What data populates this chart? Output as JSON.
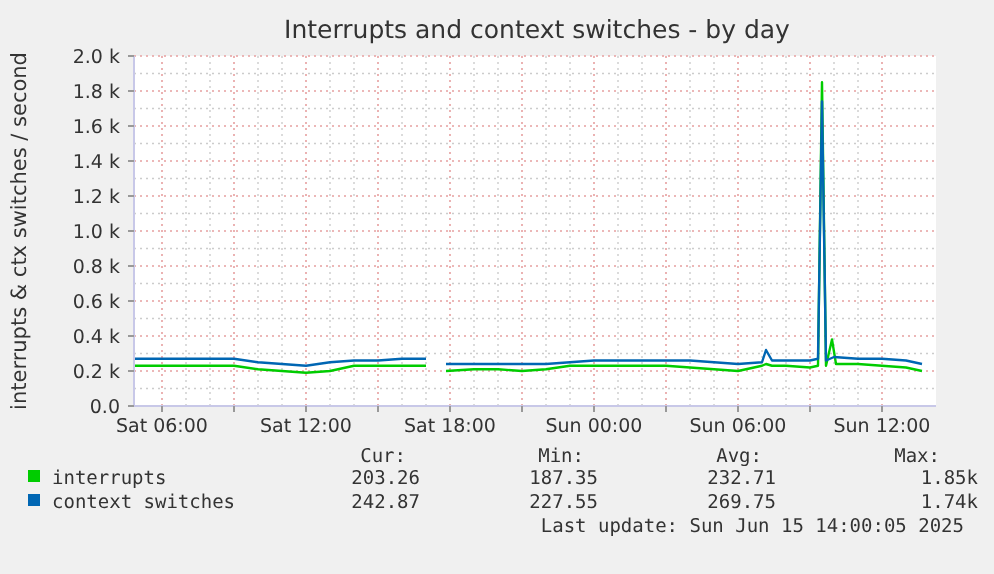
{
  "chart_data": {
    "type": "line",
    "title": "Interrupts and context switches - by day",
    "ylabel": "interrupts & ctx switches / second",
    "xlim": [
      "2025-06-14T04:50",
      "2025-06-15T14:15"
    ],
    "ylim": [
      0,
      2000
    ],
    "xticks": [
      {
        "value": "2025-06-14T06:00",
        "label": "Sat 06:00"
      },
      {
        "value": "2025-06-14T09:00",
        "label": null
      },
      {
        "value": "2025-06-14T12:00",
        "label": "Sat 12:00"
      },
      {
        "value": "2025-06-14T15:00",
        "label": null
      },
      {
        "value": "2025-06-14T18:00",
        "label": "Sat 18:00"
      },
      {
        "value": "2025-06-14T21:00",
        "label": null
      },
      {
        "value": "2025-06-15T00:00",
        "label": "Sun 00:00"
      },
      {
        "value": "2025-06-15T03:00",
        "label": null
      },
      {
        "value": "2025-06-15T06:00",
        "label": "Sun 06:00"
      },
      {
        "value": "2025-06-15T09:00",
        "label": null
      },
      {
        "value": "2025-06-15T12:00",
        "label": "Sun 12:00"
      }
    ],
    "yticks": [
      {
        "value": 0,
        "label": "0.0"
      },
      {
        "value": 200,
        "label": "0.2 k"
      },
      {
        "value": 400,
        "label": "0.4 k"
      },
      {
        "value": 600,
        "label": "0.6 k"
      },
      {
        "value": 800,
        "label": "0.8 k"
      },
      {
        "value": 1000,
        "label": "1.0 k"
      },
      {
        "value": 1200,
        "label": "1.2 k"
      },
      {
        "value": 1400,
        "label": "1.4 k"
      },
      {
        "value": 1600,
        "label": "1.6 k"
      },
      {
        "value": 1800,
        "label": "1.8 k"
      },
      {
        "value": 2000,
        "label": "2.0 k"
      }
    ],
    "grid": true,
    "legend": "bottom",
    "marker": "none",
    "line_style": "solid",
    "series": [
      {
        "name": "interrupts",
        "color": "#00cc00",
        "x": [
          "2025-06-14T04:50",
          "2025-06-14T06:00",
          "2025-06-14T07:00",
          "2025-06-14T08:00",
          "2025-06-14T09:00",
          "2025-06-14T10:00",
          "2025-06-14T11:00",
          "2025-06-14T12:00",
          "2025-06-14T13:00",
          "2025-06-14T14:00",
          "2025-06-14T15:00",
          "2025-06-14T16:00",
          "2025-06-14T17:00",
          "2025-06-14T17:20",
          "2025-06-14T17:30",
          "2025-06-14T17:50",
          "2025-06-14T19:00",
          "2025-06-14T20:00",
          "2025-06-14T21:00",
          "2025-06-14T22:00",
          "2025-06-14T23:00",
          "2025-06-15T00:00",
          "2025-06-15T01:00",
          "2025-06-15T02:00",
          "2025-06-15T03:00",
          "2025-06-15T04:00",
          "2025-06-15T05:00",
          "2025-06-15T06:00",
          "2025-06-15T07:00",
          "2025-06-15T07:10",
          "2025-06-15T07:25",
          "2025-06-15T08:00",
          "2025-06-15T09:00",
          "2025-06-15T09:20",
          "2025-06-15T09:30",
          "2025-06-15T09:40",
          "2025-06-15T09:55",
          "2025-06-15T10:05",
          "2025-06-15T11:00",
          "2025-06-15T12:00",
          "2025-06-15T13:00",
          "2025-06-15T13:40"
        ],
        "values": [
          230,
          230,
          230,
          230,
          230,
          210,
          200,
          190,
          200,
          230,
          230,
          230,
          230,
          null,
          null,
          200,
          210,
          210,
          200,
          210,
          230,
          230,
          230,
          230,
          230,
          220,
          210,
          200,
          230,
          240,
          230,
          230,
          220,
          230,
          1850,
          230,
          380,
          240,
          240,
          230,
          220,
          200
        ]
      },
      {
        "name": "context switches",
        "color": "#0066b3",
        "x": [
          "2025-06-14T04:50",
          "2025-06-14T06:00",
          "2025-06-14T07:00",
          "2025-06-14T08:00",
          "2025-06-14T09:00",
          "2025-06-14T10:00",
          "2025-06-14T11:00",
          "2025-06-14T12:00",
          "2025-06-14T13:00",
          "2025-06-14T14:00",
          "2025-06-14T15:00",
          "2025-06-14T16:00",
          "2025-06-14T17:00",
          "2025-06-14T17:20",
          "2025-06-14T17:30",
          "2025-06-14T17:50",
          "2025-06-14T19:00",
          "2025-06-14T20:00",
          "2025-06-14T21:00",
          "2025-06-14T22:00",
          "2025-06-14T23:00",
          "2025-06-15T00:00",
          "2025-06-15T01:00",
          "2025-06-15T02:00",
          "2025-06-15T03:00",
          "2025-06-15T04:00",
          "2025-06-15T05:00",
          "2025-06-15T06:00",
          "2025-06-15T07:00",
          "2025-06-15T07:10",
          "2025-06-15T07:25",
          "2025-06-15T08:00",
          "2025-06-15T09:00",
          "2025-06-15T09:20",
          "2025-06-15T09:30",
          "2025-06-15T09:40",
          "2025-06-15T10:00",
          "2025-06-15T11:00",
          "2025-06-15T12:00",
          "2025-06-15T13:00",
          "2025-06-15T13:40"
        ],
        "values": [
          270,
          270,
          270,
          270,
          270,
          250,
          240,
          230,
          250,
          260,
          260,
          270,
          270,
          null,
          null,
          240,
          240,
          240,
          240,
          240,
          250,
          260,
          260,
          260,
          260,
          260,
          250,
          240,
          250,
          320,
          260,
          260,
          260,
          270,
          1740,
          260,
          280,
          270,
          270,
          260,
          240
        ]
      }
    ],
    "annotations": [
      "Cur:",
      "Min:",
      "Avg:",
      "Max:",
      "203.26",
      "187.35",
      "232.71",
      "1.85k",
      "242.87",
      "227.55",
      "269.75",
      "1.74k",
      "Last update: Sun Jun 15 14:00:05 2025"
    ]
  }
}
